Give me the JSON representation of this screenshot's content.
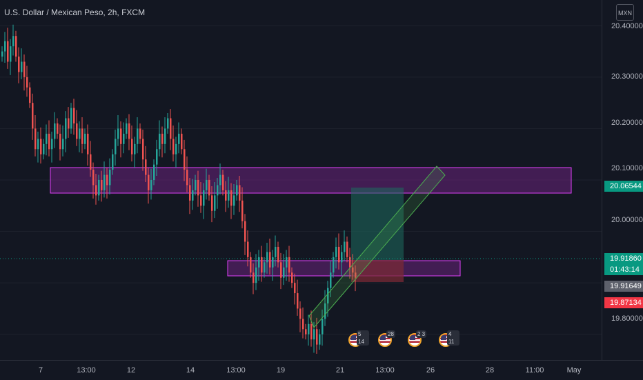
{
  "header": {
    "symbol_title": "U.S. Dollar / Mexican Peso, 2h, FXCM"
  },
  "price_scale": {
    "currency_button": "MXN",
    "ticks": [
      "20.40000",
      "20.30000",
      "20.20000",
      "20.10000",
      "20.00000",
      "19.90000",
      "19.80000"
    ]
  },
  "price_tags": [
    {
      "id": "alert-upper",
      "label": "20.06544",
      "color": "#089981"
    },
    {
      "id": "last-price",
      "label": "19.91860",
      "color": "#089981"
    },
    {
      "id": "countdown",
      "label": "01:43:14",
      "color": "#089981"
    },
    {
      "id": "stop-level",
      "label": "19.91649",
      "color": "#5d606b"
    },
    {
      "id": "stop-loss",
      "label": "19.87134",
      "color": "#f23645"
    }
  ],
  "time_axis": {
    "ticks": [
      "7",
      "13:00",
      "12",
      "14",
      "13:00",
      "19",
      "21",
      "13:00",
      "26",
      "28",
      "11:00",
      "May"
    ]
  },
  "events": [
    {
      "count": "5 14"
    },
    {
      "count": "28"
    },
    {
      "count": "2 3"
    },
    {
      "count": "4 11"
    }
  ],
  "colors": {
    "background": "#131722",
    "candle_up": "#26a69a",
    "candle_down": "#ef5350",
    "zone_fill": "#9c27b0",
    "zone_border": "#e040fb",
    "channel": "#4caf50",
    "target_fill": "#1e6b5e",
    "stop_fill": "#7a2a35"
  },
  "chart_data": {
    "type": "candlestick",
    "title": "U.S. Dollar / Mexican Peso, 2h, FXCM",
    "ylim": [
      19.75,
      20.45
    ],
    "close": [
      20.35,
      20.37,
      20.33,
      20.36,
      20.38,
      20.34,
      20.31,
      20.33,
      20.3,
      20.28,
      20.25,
      20.2,
      20.16,
      20.18,
      20.15,
      20.17,
      20.19,
      20.16,
      20.18,
      20.21,
      20.19,
      20.16,
      20.18,
      20.22,
      20.2,
      20.24,
      20.21,
      20.18,
      20.2,
      20.17,
      20.19,
      20.15,
      20.12,
      20.09,
      20.07,
      20.1,
      20.08,
      20.11,
      20.09,
      20.12,
      20.15,
      20.18,
      20.2,
      20.17,
      20.19,
      20.21,
      20.18,
      20.15,
      20.17,
      20.2,
      20.18,
      20.14,
      20.11,
      20.08,
      20.1,
      20.13,
      20.16,
      20.19,
      20.17,
      20.2,
      20.22,
      20.18,
      20.15,
      20.17,
      20.19,
      20.16,
      20.12,
      20.09,
      20.06,
      20.08,
      20.1,
      20.07,
      20.05,
      20.08,
      20.1,
      20.07,
      20.04,
      20.07,
      20.09,
      20.11,
      20.08,
      20.06,
      20.08,
      20.05,
      20.07,
      20.09,
      20.06,
      20.02,
      19.98,
      19.95,
      19.92,
      19.9,
      19.93,
      19.95,
      19.92,
      19.94,
      19.96,
      19.93,
      19.95,
      19.97,
      19.94,
      19.91,
      19.93,
      19.95,
      19.92,
      19.9,
      19.88,
      19.85,
      19.83,
      19.81,
      19.8,
      19.82,
      19.79,
      19.81,
      19.78,
      19.8,
      19.83,
      19.86,
      19.89,
      19.92,
      19.95,
      19.97,
      19.94,
      19.96,
      19.98,
      19.95,
      19.93,
      19.92,
      19.91
    ]
  }
}
